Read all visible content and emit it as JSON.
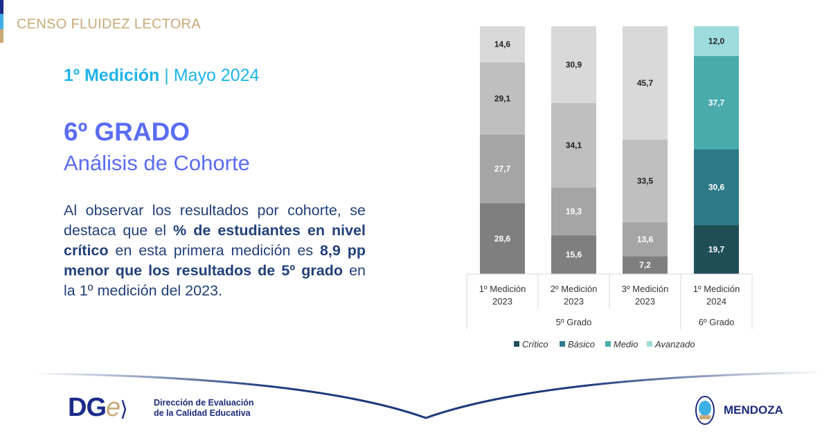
{
  "header": {
    "title": "CENSO FLUIDEZ LECTORA"
  },
  "subtitle": {
    "bold": "1º Medición",
    "sep": " | ",
    "rest": "Mayo 2024"
  },
  "heading": {
    "grade": "6º GRADO",
    "analysis": "Análisis de Cohorte"
  },
  "paragraph": [
    {
      "t": "Al observar los resultados por cohorte, se destaca que el ",
      "b": false
    },
    {
      "t": "% de estudiantes en nivel crítico",
      "b": true
    },
    {
      "t": " en esta primera medición es ",
      "b": false
    },
    {
      "t": "8,9 pp menor que los resultados de 5º grado",
      "b": true
    },
    {
      "t": " en la 1º medición del 2023.",
      "b": false
    }
  ],
  "footer": {
    "dge_logo": "DGe",
    "dge_line1": "Dirección de Evaluación",
    "dge_line2": "de la Calidad Educativa",
    "mendoza": "MENDOZA"
  },
  "chart_data": {
    "type": "bar",
    "stacked": true,
    "categories": [
      [
        "1º Medición",
        "2023"
      ],
      [
        "2º Medición",
        "2023"
      ],
      [
        "3º Medición",
        "2023"
      ],
      [
        "1º Medición",
        "2024"
      ]
    ],
    "groups": [
      {
        "label": "5º Grado",
        "span": 3
      },
      {
        "label": "6º Grado",
        "span": 1
      }
    ],
    "series": [
      {
        "name": "Crítico",
        "values": [
          28.6,
          15.6,
          7.2,
          19.7
        ]
      },
      {
        "name": "Básico",
        "values": [
          27.7,
          19.3,
          13.6,
          30.6
        ]
      },
      {
        "name": "Medio",
        "values": [
          29.1,
          34.1,
          33.5,
          37.7
        ]
      },
      {
        "name": "Avanzado",
        "values": [
          14.6,
          30.9,
          45.7,
          12.0
        ]
      }
    ],
    "labels": [
      [
        "28,6",
        "27,7",
        "29,1",
        "14,6"
      ],
      [
        "15,6",
        "19,3",
        "34,1",
        "30,9"
      ],
      [
        "7,2",
        "13,6",
        "33,5",
        "45,7"
      ],
      [
        "19,7",
        "30,6",
        "37,7",
        "12,0"
      ]
    ],
    "ylim": [
      0,
      100
    ],
    "legend": "bottom",
    "colors_5": [
      "#7f7f7f",
      "#a5a5a5",
      "#bfbfbf",
      "#d9d9d9"
    ],
    "colors_6": [
      "#1f4e56",
      "#2e7a87",
      "#4aabad",
      "#9ddcdc"
    ],
    "label_colors": [
      "#ffffff",
      "#ffffff",
      "#222222",
      "#222222"
    ],
    "label_colors_6": [
      "#ffffff",
      "#ffffff",
      "#ffffff",
      "#222222"
    ]
  }
}
